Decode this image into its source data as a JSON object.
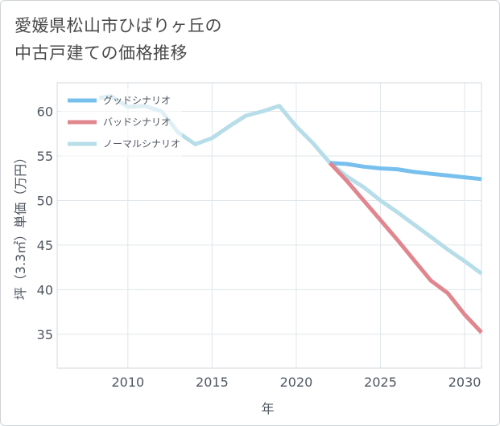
{
  "title": {
    "line1": "愛媛県松山市ひばりヶ丘の",
    "line2": "中古戸建ての価格推移"
  },
  "chart_data": {
    "type": "line",
    "title": "愛媛県松山市ひばりヶ丘の中古戸建ての価格推移",
    "xlabel": "年",
    "ylabel": "坪（3.3㎡）単価（万円）",
    "xlim": [
      2005.8,
      2031
    ],
    "ylim": [
      31.2,
      63.2
    ],
    "xticks": [
      2010,
      2015,
      2020,
      2025,
      2030
    ],
    "yticks": [
      35,
      40,
      45,
      50,
      55,
      60
    ],
    "grid": true,
    "legend_position": "top-left",
    "series": [
      {
        "name": "グッドシナリオ",
        "color": "#77c0ee",
        "x": [
          2022,
          2023,
          2024,
          2025,
          2026,
          2027,
          2028,
          2029,
          2030,
          2031
        ],
        "y": [
          54.2,
          54.1,
          53.8,
          53.6,
          53.5,
          53.2,
          53.0,
          52.8,
          52.6,
          52.4
        ]
      },
      {
        "name": "バッドシナリオ",
        "color": "#e0868e",
        "x": [
          2022,
          2023,
          2024,
          2025,
          2026,
          2027,
          2028,
          2029,
          2030,
          2031
        ],
        "y": [
          54.2,
          52.2,
          50.0,
          47.8,
          45.6,
          43.3,
          41.0,
          39.6,
          37.2,
          35.2
        ]
      },
      {
        "name": "ノーマルシナリオ",
        "color": "#b7dde9",
        "x": [
          2008.3,
          2009,
          2010,
          2011,
          2012,
          2013,
          2014,
          2015,
          2016,
          2017,
          2018,
          2019,
          2020,
          2021,
          2022,
          2023,
          2024,
          2025,
          2026,
          2027,
          2028,
          2029,
          2030,
          2031
        ],
        "y": [
          61.5,
          61.7,
          60.5,
          60.6,
          60.0,
          57.6,
          56.3,
          57.0,
          58.3,
          59.5,
          60.0,
          60.6,
          58.3,
          56.4,
          54.2,
          52.7,
          51.5,
          50.0,
          48.7,
          47.3,
          45.9,
          44.5,
          43.2,
          41.8
        ]
      }
    ]
  }
}
